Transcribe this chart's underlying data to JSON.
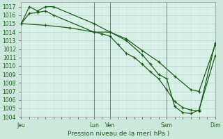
{
  "title": "Pression niveau de la mer( hPa )",
  "bg_color": "#cce8dc",
  "plot_bg": "#d8f0e8",
  "grid_color": "#b8d8c8",
  "grid_minor_color": "#c8e4d4",
  "line_color": "#1a5c1a",
  "vline_color": "#6a8a7a",
  "ylim_min": 1004,
  "ylim_max": 1017.5,
  "yticks": [
    1004,
    1005,
    1006,
    1007,
    1008,
    1009,
    1010,
    1011,
    1012,
    1013,
    1014,
    1015,
    1016,
    1017
  ],
  "xtick_labels": [
    "Jeu",
    "Lun",
    "Ven",
    "Sam",
    "Dim"
  ],
  "xtick_positions": [
    0,
    9,
    11,
    18,
    24
  ],
  "vline_positions": [
    9,
    11,
    18,
    24
  ],
  "xlim_min": 0,
  "xlim_max": 24,
  "series1_x": [
    0,
    1,
    2,
    3,
    4,
    9,
    11,
    13,
    15,
    17,
    19,
    21,
    22,
    24
  ],
  "series1_y": [
    1015.0,
    1017.0,
    1016.5,
    1017.0,
    1017.0,
    1015.0,
    1014.0,
    1013.2,
    1011.8,
    1010.5,
    1008.8,
    1007.2,
    1007.0,
    1012.5
  ],
  "series2_x": [
    0,
    1,
    2,
    3,
    4,
    9,
    11,
    13,
    15,
    16,
    17,
    18,
    19,
    20,
    21,
    22,
    24
  ],
  "series2_y": [
    1015.0,
    1016.2,
    1016.3,
    1016.5,
    1016.0,
    1014.0,
    1014.0,
    1013.0,
    1011.3,
    1010.2,
    1009.0,
    1008.5,
    1005.2,
    1004.5,
    1004.4,
    1004.8,
    1011.2
  ],
  "series3_x": [
    0,
    3,
    6,
    9,
    10,
    11,
    12,
    13,
    14,
    15,
    16,
    17,
    18,
    19,
    20,
    21,
    22,
    24
  ],
  "series3_y": [
    1015.0,
    1014.8,
    1014.5,
    1014.0,
    1013.8,
    1013.5,
    1012.5,
    1011.5,
    1011.0,
    1010.2,
    1009.3,
    1008.5,
    1007.2,
    1005.8,
    1005.1,
    1004.8,
    1004.7,
    1012.7
  ],
  "tick_label_size": 5.5,
  "xlabel_size": 6.5
}
